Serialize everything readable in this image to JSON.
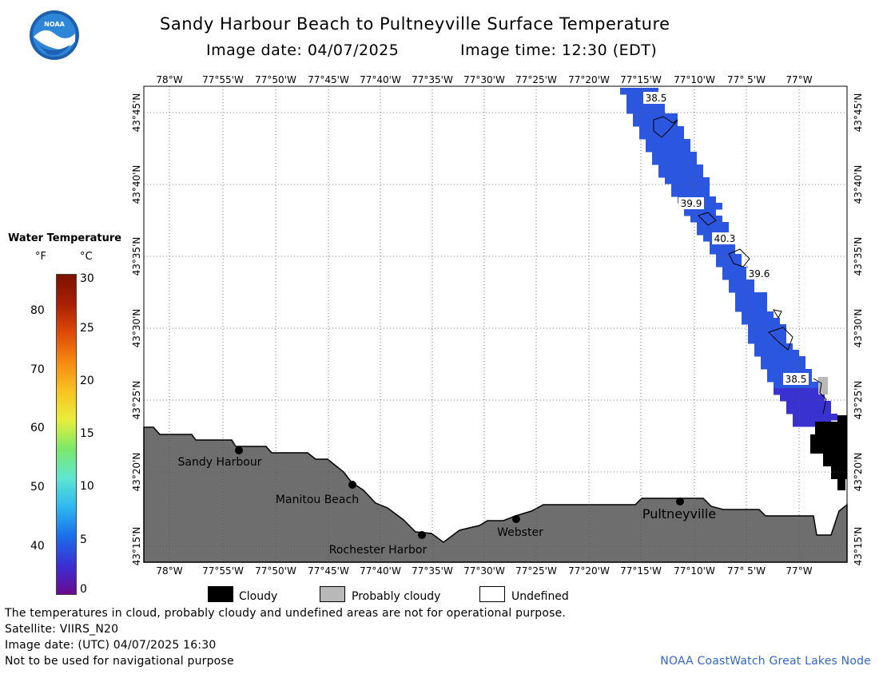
{
  "header": {
    "title": "Sandy Harbour Beach to Pultneyville Surface Temperature",
    "image_date": "Image date: 04/07/2025",
    "image_time": "Image time: 12:30 (EDT)"
  },
  "legend": {
    "title": "Water Temperature",
    "unit_f": "°F",
    "unit_c": "°C",
    "f_ticks": [
      "80",
      "70",
      "60",
      "50",
      "40"
    ],
    "c_ticks": [
      "30",
      "25",
      "20",
      "15",
      "10",
      "5",
      "0"
    ],
    "colors": [
      "#6b0a8c",
      "#3b2fd6",
      "#1a6fe8",
      "#2fb8f0",
      "#5ee6d0",
      "#7be86a",
      "#e8ee3a",
      "#f8c21f",
      "#f58a10",
      "#de4a0a",
      "#a81f05",
      "#7a1200"
    ]
  },
  "map": {
    "lon_labels": [
      "78°W",
      "77°55'W",
      "77°50'W",
      "77°45'W",
      "77°40'W",
      "77°35'W",
      "77°30'W",
      "77°25'W",
      "77°20'W",
      "77°15'W",
      "77°10'W",
      "77° 5'W",
      "77°W"
    ],
    "lat_labels": [
      "43°45'N",
      "43°40'N",
      "43°35'N",
      "43°30'N",
      "43°25'N",
      "43°20'N",
      "43°15'N"
    ],
    "places": [
      "Sandy Harbour",
      "Manitou Beach",
      "Rochester Harbor",
      "Webster",
      "Pultneyville"
    ],
    "contour_labels": [
      "38.5",
      "39.9",
      "40.3",
      "39.6",
      "38.5"
    ],
    "land_color": "#6e6e6e",
    "water_color": "#2a56e0",
    "cloud_color": "#000000",
    "probably_cloudy_color": "#b8b8b8"
  },
  "key": {
    "cloudy": "Cloudy",
    "probably_cloudy": "Probably cloudy",
    "undefined": "Undefined"
  },
  "footer": {
    "line1": "The temperatures in cloud, probably cloudy and undefined areas are not for operational purpose.",
    "line2": "Satellite: VIIRS_N20",
    "line3": "Image date: (UTC) 04/07/2025  16:30",
    "line4": "Not to be used for navigational purpose",
    "credit": "NOAA CoastWatch Great Lakes Node"
  },
  "logo": {
    "text": "NOAA"
  }
}
